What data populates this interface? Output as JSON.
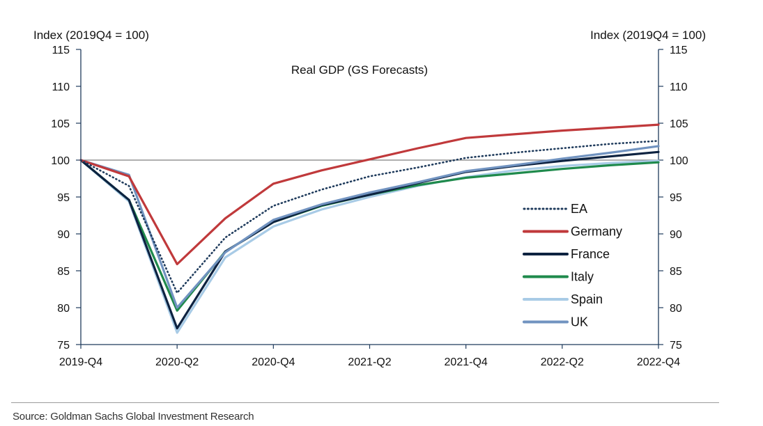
{
  "chart_data": {
    "type": "line",
    "title": "Real GDP (GS Forecasts)",
    "ylabel_left": "Index (2019Q4 = 100)",
    "ylabel_right": "Index (2019Q4 = 100)",
    "ylim": [
      75,
      115
    ],
    "yticks": [
      "75",
      "80",
      "85",
      "90",
      "95",
      "100",
      "105",
      "110",
      "115"
    ],
    "yticks_right": [
      "75",
      "80",
      "85",
      "90",
      "95",
      "100",
      "105",
      "110",
      "115"
    ],
    "x": [
      "2019-Q4",
      "2020-Q1",
      "2020-Q2",
      "2020-Q3",
      "2020-Q4",
      "2021-Q1",
      "2021-Q2",
      "2021-Q3",
      "2021-Q4",
      "2022-Q1",
      "2022-Q2",
      "2022-Q3",
      "2022-Q4"
    ],
    "xtick_labels": [
      "2019-Q4",
      "2020-Q2",
      "2020-Q4",
      "2021-Q2",
      "2021-Q4",
      "2022-Q2",
      "2022-Q4"
    ],
    "reference_line": 100,
    "series": [
      {
        "name": "EA",
        "color": "#1f3b5c",
        "style": "dotted",
        "values": [
          100,
          96.5,
          82,
          89.5,
          93.8,
          96.0,
          97.8,
          99.0,
          100.3,
          101.0,
          101.6,
          102.2,
          102.6
        ]
      },
      {
        "name": "Germany",
        "color": "#c0393b",
        "style": "solid",
        "values": [
          100,
          97.8,
          85.9,
          92.1,
          96.8,
          98.6,
          100.1,
          101.6,
          103.0,
          103.5,
          104.0,
          104.4,
          104.8
        ]
      },
      {
        "name": "France",
        "color": "#0d2240",
        "style": "solid",
        "values": [
          100,
          94.6,
          77.2,
          87.6,
          91.6,
          93.9,
          95.3,
          96.9,
          98.4,
          99.2,
          99.9,
          100.5,
          101.1
        ]
      },
      {
        "name": "Italy",
        "color": "#1f8a4c",
        "style": "solid",
        "values": [
          100,
          94.6,
          79.6,
          87.6,
          91.6,
          93.8,
          95.3,
          96.6,
          97.6,
          98.2,
          98.8,
          99.3,
          99.7
        ]
      },
      {
        "name": "Spain",
        "color": "#a8cbe6",
        "style": "solid",
        "values": [
          100,
          94.4,
          76.6,
          86.8,
          91.0,
          93.3,
          95.0,
          96.5,
          97.7,
          98.6,
          99.2,
          99.6,
          99.9
        ]
      },
      {
        "name": "UK",
        "color": "#7193c0",
        "style": "solid",
        "values": [
          100,
          98.0,
          80.0,
          87.5,
          91.9,
          94.0,
          95.6,
          97.0,
          98.5,
          99.3,
          100.2,
          101.0,
          101.9
        ]
      }
    ]
  },
  "source": "Source: Goldman Sachs Global Investment Research"
}
